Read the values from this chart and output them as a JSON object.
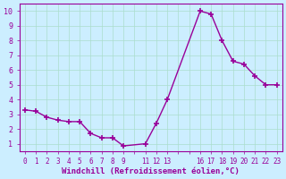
{
  "x": [
    0,
    1,
    2,
    3,
    4,
    5,
    6,
    7,
    8,
    9,
    11,
    12,
    13,
    16,
    17,
    18,
    19,
    20,
    21,
    22,
    23
  ],
  "y": [
    3.3,
    3.2,
    2.8,
    2.6,
    2.5,
    2.5,
    1.7,
    1.4,
    1.4,
    0.85,
    1.0,
    2.4,
    4.0,
    10.0,
    9.8,
    8.0,
    6.6,
    6.4,
    5.6,
    5.0,
    5.0
  ],
  "xticks_all": [
    0,
    1,
    2,
    3,
    4,
    5,
    6,
    7,
    8,
    9,
    10,
    11,
    12,
    13,
    14,
    15,
    16,
    17,
    18,
    19,
    20,
    21,
    22,
    23
  ],
  "xtick_labels_all": [
    "0",
    "1",
    "2",
    "3",
    "4",
    "5",
    "6",
    "7",
    "8",
    "9",
    "",
    "11",
    "12",
    "13",
    "",
    "",
    "16",
    "17",
    "18",
    "19",
    "20",
    "21",
    "22",
    "23"
  ],
  "yticks": [
    1,
    2,
    3,
    4,
    5,
    6,
    7,
    8,
    9,
    10
  ],
  "ylim": [
    0.5,
    10.5
  ],
  "xlim": [
    -0.5,
    23.5
  ],
  "xlabel": "Windchill (Refroidissement éolien,°C)",
  "line_color": "#990099",
  "marker_color": "#990099",
  "bg_color": "#cceeff",
  "grid_color": "#aaddcc"
}
